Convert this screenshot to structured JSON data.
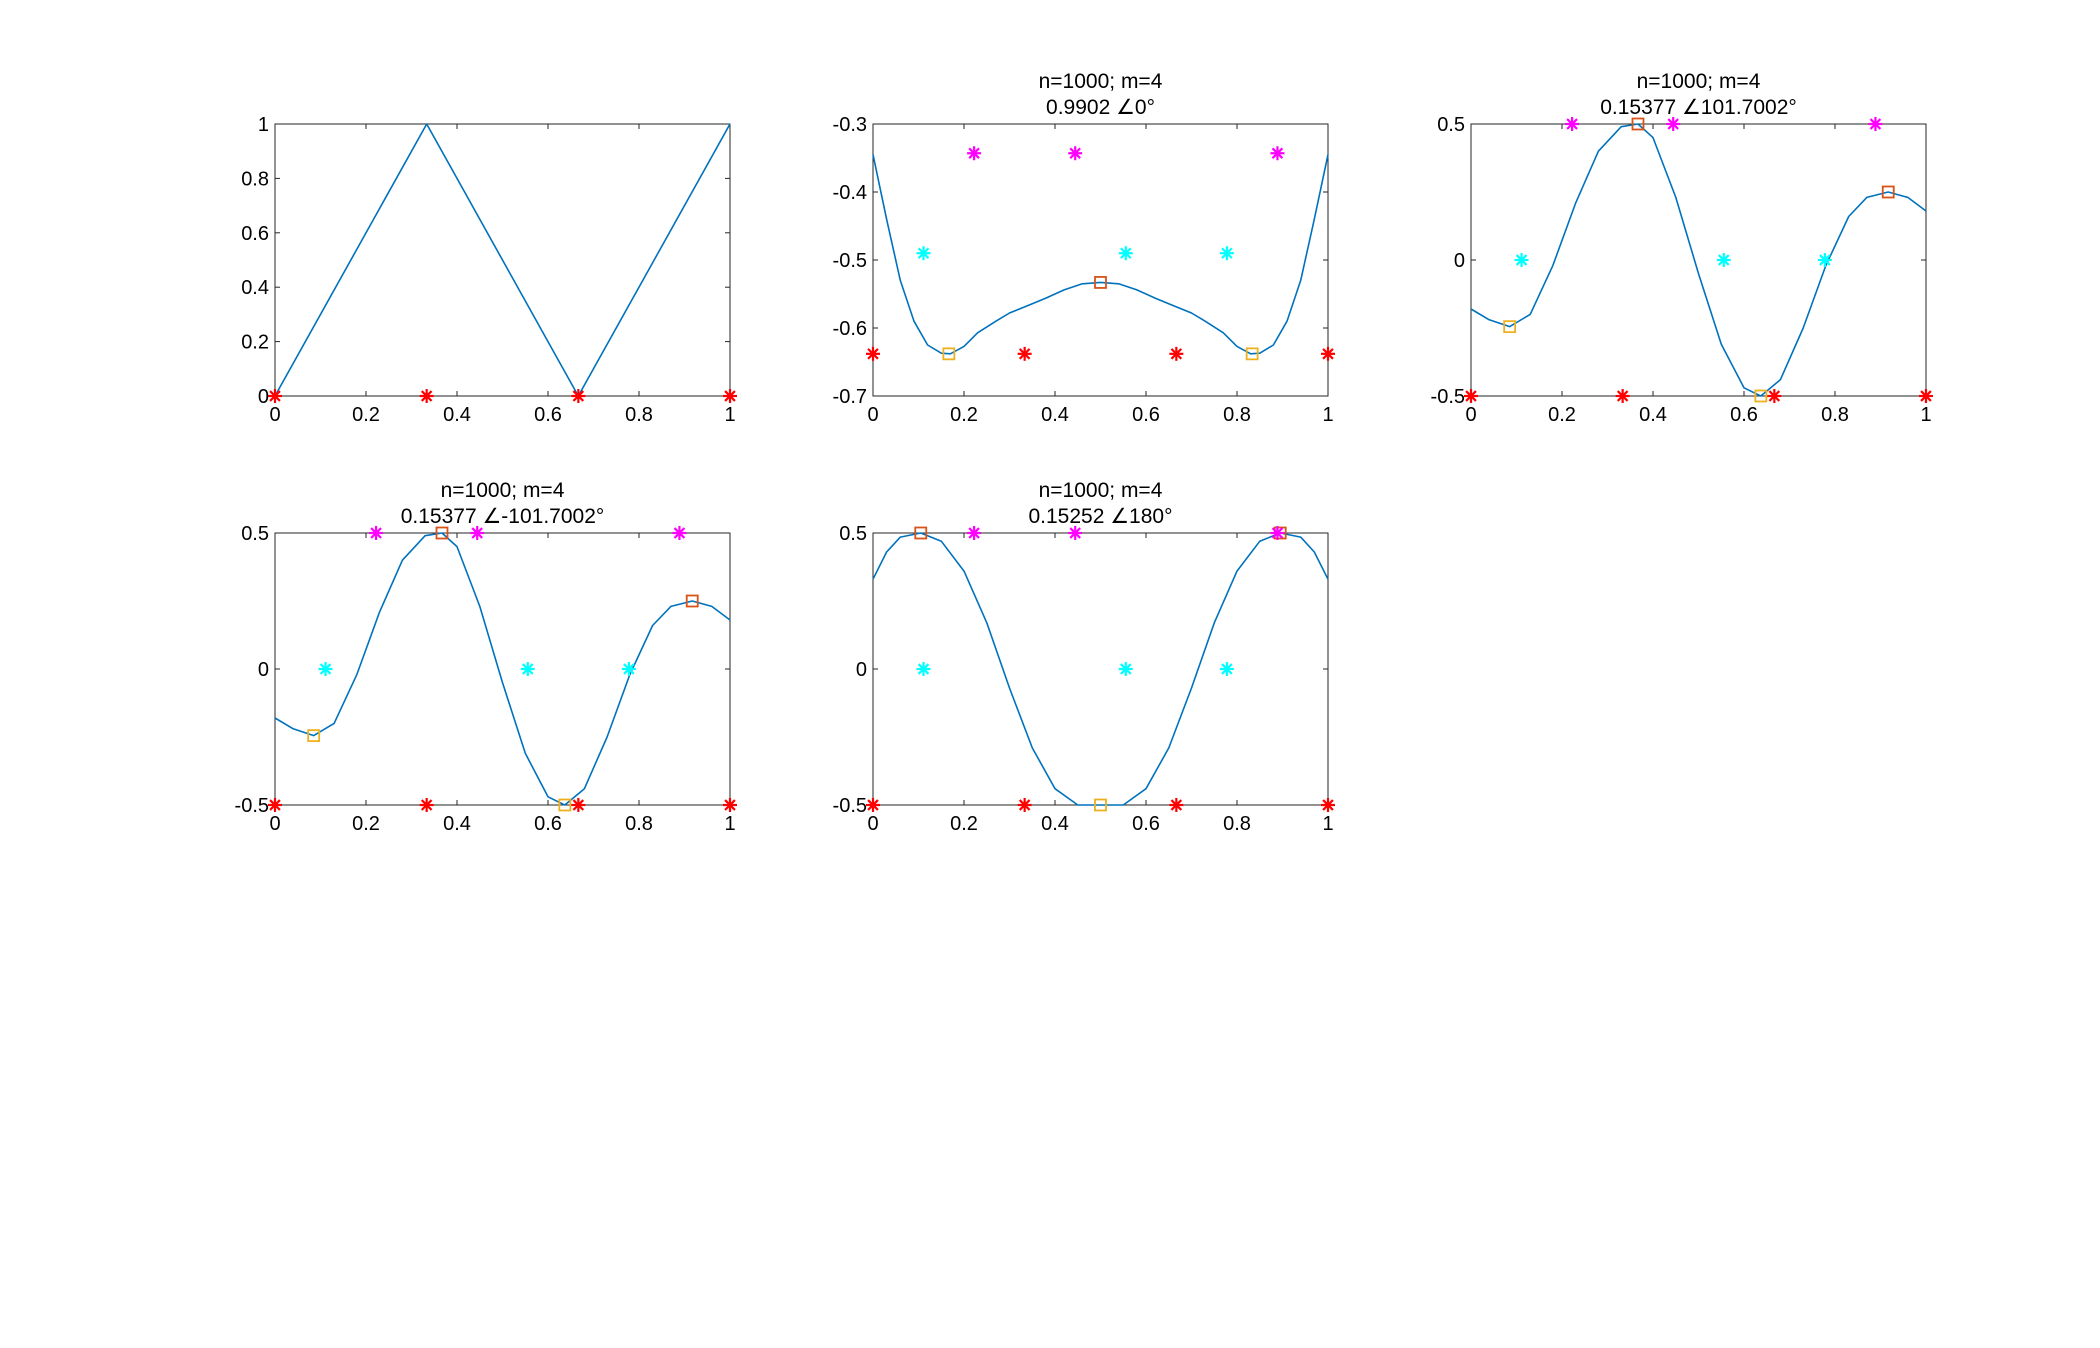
{
  "colors": {
    "line": "#0072BD",
    "square_a": "#D95319",
    "square_b": "#EDB120",
    "star_red": "#FF0000",
    "star_cyan": "#00FFFF",
    "star_magenta": "#FF00FF",
    "axes": "#262626"
  },
  "chart_data": [
    {
      "type": "line",
      "title": [],
      "xlim": [
        0,
        1
      ],
      "ylim": [
        0,
        1
      ],
      "xticks": [
        "0",
        "0.2",
        "0.4",
        "0.6",
        "0.8",
        "1"
      ],
      "yticks": [
        "0",
        "0.2",
        "0.4",
        "0.6",
        "0.8",
        "1"
      ],
      "series": [
        {
          "style": "line",
          "x": [
            0,
            0.3333,
            0.6667,
            1
          ],
          "y": [
            0,
            1,
            0,
            1
          ]
        },
        {
          "style": "star-red",
          "x": [
            0,
            0.3333,
            0.6667,
            1
          ],
          "y": [
            0,
            0,
            0,
            0
          ]
        }
      ]
    },
    {
      "type": "line",
      "title": [
        "n=1000; m=4",
        "0.9902 ∠0°"
      ],
      "xlim": [
        0,
        1
      ],
      "ylim": [
        -0.7,
        -0.3
      ],
      "xticks": [
        "0",
        "0.2",
        "0.4",
        "0.6",
        "0.8",
        "1"
      ],
      "yticks": [
        "-0.3",
        "-0.4",
        "-0.5",
        "-0.6",
        "-0.7"
      ],
      "series": [
        {
          "style": "line",
          "x": [
            0,
            0.03,
            0.06,
            0.09,
            0.12,
            0.15,
            0.17,
            0.2,
            0.23,
            0.27,
            0.3,
            0.34,
            0.38,
            0.42,
            0.46,
            0.5,
            0.54,
            0.58,
            0.62,
            0.66,
            0.7,
            0.73,
            0.77,
            0.8,
            0.83,
            0.85,
            0.88,
            0.91,
            0.94,
            0.97,
            1
          ],
          "y": [
            -0.345,
            -0.44,
            -0.53,
            -0.59,
            -0.625,
            -0.637,
            -0.638,
            -0.627,
            -0.607,
            -0.59,
            -0.578,
            -0.567,
            -0.556,
            -0.544,
            -0.535,
            -0.533,
            -0.535,
            -0.544,
            -0.556,
            -0.567,
            -0.578,
            -0.59,
            -0.607,
            -0.627,
            -0.638,
            -0.637,
            -0.625,
            -0.59,
            -0.53,
            -0.44,
            -0.345
          ]
        },
        {
          "style": "square-a",
          "x": [
            0.5
          ],
          "y": [
            -0.533
          ]
        },
        {
          "style": "square-b",
          "x": [
            0.1667,
            0.8333
          ],
          "y": [
            -0.638,
            -0.638
          ]
        },
        {
          "style": "star-red",
          "x": [
            0,
            0.3333,
            0.6667,
            1
          ],
          "y": [
            -0.638,
            -0.638,
            -0.638,
            -0.638
          ]
        },
        {
          "style": "star-cyan",
          "x": [
            0.1111,
            0.5556,
            0.7778
          ],
          "y": [
            -0.49,
            -0.49,
            -0.49
          ]
        },
        {
          "style": "star-magenta",
          "x": [
            0.2222,
            0.4444,
            0.8889
          ],
          "y": [
            -0.343,
            -0.343,
            -0.343
          ]
        }
      ]
    },
    {
      "type": "line",
      "title": [
        "n=1000; m=4",
        "0.15377 ∠101.7002°"
      ],
      "xlim": [
        0,
        1
      ],
      "ylim": [
        -0.5,
        0.5
      ],
      "xticks": [
        "0",
        "0.2",
        "0.4",
        "0.6",
        "0.8",
        "1"
      ],
      "yticks": [
        "0.5",
        "0",
        "-0.5"
      ],
      "series": [
        {
          "style": "line",
          "x": [
            0,
            0.04,
            0.085,
            0.13,
            0.18,
            0.23,
            0.28,
            0.33,
            0.367,
            0.4,
            0.45,
            0.5,
            0.55,
            0.6,
            0.637,
            0.68,
            0.73,
            0.78,
            0.83,
            0.87,
            0.917,
            0.96,
            1
          ],
          "y": [
            -0.18,
            -0.22,
            -0.245,
            -0.2,
            -0.02,
            0.21,
            0.4,
            0.49,
            0.5,
            0.45,
            0.23,
            -0.05,
            -0.31,
            -0.47,
            -0.5,
            -0.44,
            -0.25,
            -0.02,
            0.16,
            0.23,
            0.25,
            0.23,
            0.18
          ]
        },
        {
          "style": "square-a",
          "x": [
            0.367,
            0.917
          ],
          "y": [
            0.5,
            0.25
          ]
        },
        {
          "style": "square-b",
          "x": [
            0.085,
            0.637
          ],
          "y": [
            -0.245,
            -0.5
          ]
        },
        {
          "style": "star-red",
          "x": [
            0,
            0.3333,
            0.6667,
            1
          ],
          "y": [
            -0.5,
            -0.5,
            -0.5,
            -0.5
          ]
        },
        {
          "style": "star-cyan",
          "x": [
            0.1111,
            0.5556,
            0.7778
          ],
          "y": [
            0,
            0,
            0
          ]
        },
        {
          "style": "star-magenta",
          "x": [
            0.2222,
            0.4444,
            0.8889
          ],
          "y": [
            0.5,
            0.5,
            0.5
          ]
        }
      ]
    },
    {
      "type": "line",
      "title": [
        "n=1000; m=4",
        "0.15377 ∠-101.7002°"
      ],
      "xlim": [
        0,
        1
      ],
      "ylim": [
        -0.5,
        0.5
      ],
      "xticks": [
        "0",
        "0.2",
        "0.4",
        "0.6",
        "0.8",
        "1"
      ],
      "yticks": [
        "0.5",
        "0",
        "-0.5"
      ],
      "series": [
        {
          "style": "line",
          "x": [
            0,
            0.04,
            0.085,
            0.13,
            0.18,
            0.23,
            0.28,
            0.33,
            0.367,
            0.4,
            0.45,
            0.5,
            0.55,
            0.6,
            0.637,
            0.68,
            0.73,
            0.78,
            0.83,
            0.87,
            0.917,
            0.96,
            1
          ],
          "y": [
            -0.18,
            -0.22,
            -0.245,
            -0.2,
            -0.02,
            0.21,
            0.4,
            0.49,
            0.5,
            0.45,
            0.23,
            -0.05,
            -0.31,
            -0.47,
            -0.5,
            -0.44,
            -0.25,
            -0.02,
            0.16,
            0.23,
            0.25,
            0.23,
            0.18
          ]
        },
        {
          "style": "square-a",
          "x": [
            0.367,
            0.917
          ],
          "y": [
            0.5,
            0.25
          ]
        },
        {
          "style": "square-b",
          "x": [
            0.085,
            0.637
          ],
          "y": [
            -0.245,
            -0.5
          ]
        },
        {
          "style": "star-red",
          "x": [
            0,
            0.3333,
            0.6667,
            1
          ],
          "y": [
            -0.5,
            -0.5,
            -0.5,
            -0.5
          ]
        },
        {
          "style": "star-cyan",
          "x": [
            0.1111,
            0.5556,
            0.7778
          ],
          "y": [
            0,
            0,
            0
          ]
        },
        {
          "style": "star-magenta",
          "x": [
            0.2222,
            0.4444,
            0.8889
          ],
          "y": [
            0.5,
            0.5,
            0.5
          ]
        }
      ]
    },
    {
      "type": "line",
      "title": [
        "n=1000; m=4",
        "0.15252 ∠180°"
      ],
      "xlim": [
        0,
        1
      ],
      "ylim": [
        -0.5,
        0.5
      ],
      "xticks": [
        "0",
        "0.2",
        "0.4",
        "0.6",
        "0.8",
        "1"
      ],
      "yticks": [
        "0.5",
        "0",
        "-0.5"
      ],
      "series": [
        {
          "style": "line",
          "x": [
            0,
            0.03,
            0.06,
            0.105,
            0.15,
            0.2,
            0.25,
            0.3,
            0.35,
            0.4,
            0.45,
            0.5,
            0.55,
            0.6,
            0.65,
            0.7,
            0.75,
            0.8,
            0.85,
            0.895,
            0.94,
            0.97,
            1
          ],
          "y": [
            0.33,
            0.43,
            0.485,
            0.5,
            0.47,
            0.36,
            0.17,
            -0.07,
            -0.29,
            -0.44,
            -0.5,
            -0.5,
            -0.5,
            -0.44,
            -0.29,
            -0.07,
            0.17,
            0.36,
            0.47,
            0.5,
            0.485,
            0.43,
            0.33
          ]
        },
        {
          "style": "square-a",
          "x": [
            0.105,
            0.895
          ],
          "y": [
            0.5,
            0.5
          ]
        },
        {
          "style": "square-b",
          "x": [
            0.5
          ],
          "y": [
            -0.5
          ]
        },
        {
          "style": "star-red",
          "x": [
            0,
            0.3333,
            0.6667,
            1
          ],
          "y": [
            -0.5,
            -0.5,
            -0.5,
            -0.5
          ]
        },
        {
          "style": "star-cyan",
          "x": [
            0.1111,
            0.5556,
            0.7778
          ],
          "y": [
            0,
            0,
            0
          ]
        },
        {
          "style": "star-magenta",
          "x": [
            0.2222,
            0.4444,
            0.8889
          ],
          "y": [
            0.5,
            0.5,
            0.5
          ]
        }
      ]
    }
  ]
}
